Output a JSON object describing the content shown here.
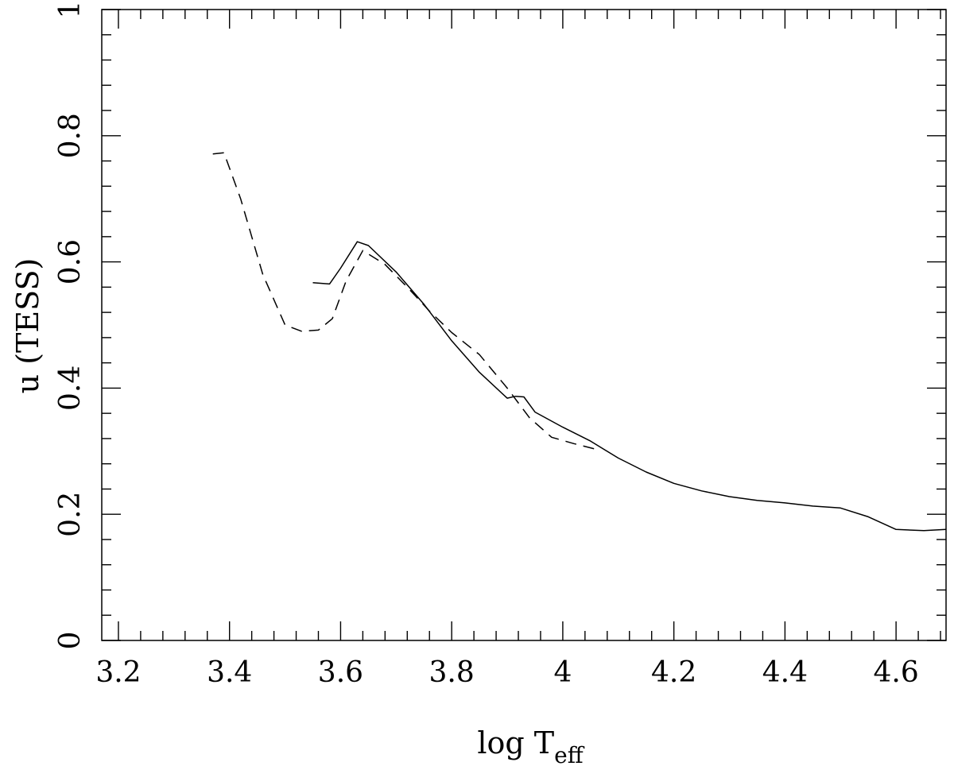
{
  "chart_data": {
    "type": "line",
    "title": "",
    "xlabel_main": "log T",
    "xlabel_sub": "eff",
    "ylabel": "u (TESS)",
    "xlim": [
      3.17,
      4.69
    ],
    "ylim": [
      0,
      1
    ],
    "x_ticks": [
      3.2,
      3.4,
      3.6,
      3.8,
      4.0,
      4.2,
      4.4,
      4.6
    ],
    "x_tick_labels": [
      "3.2",
      "3.4",
      "3.6",
      "3.8",
      "4",
      "4.2",
      "4.4",
      "4.6"
    ],
    "y_ticks": [
      0,
      0.2,
      0.4,
      0.6,
      0.8,
      1
    ],
    "y_tick_labels": [
      "0",
      "0.2",
      "0.4",
      "0.6",
      "0.8",
      "1"
    ],
    "x_minor_step": 0.04,
    "y_minor_step": 0.04,
    "grid": false,
    "series": [
      {
        "style": "solid",
        "points": [
          [
            3.55,
            0.567
          ],
          [
            3.58,
            0.565
          ],
          [
            3.6,
            0.59
          ],
          [
            3.63,
            0.632
          ],
          [
            3.65,
            0.626
          ],
          [
            3.7,
            0.584
          ],
          [
            3.75,
            0.533
          ],
          [
            3.8,
            0.475
          ],
          [
            3.85,
            0.425
          ],
          [
            3.9,
            0.384
          ],
          [
            3.915,
            0.387
          ],
          [
            3.93,
            0.386
          ],
          [
            3.95,
            0.362
          ],
          [
            4.0,
            0.338
          ],
          [
            4.05,
            0.316
          ],
          [
            4.1,
            0.289
          ],
          [
            4.15,
            0.267
          ],
          [
            4.2,
            0.249
          ],
          [
            4.25,
            0.237
          ],
          [
            4.3,
            0.228
          ],
          [
            4.35,
            0.222
          ],
          [
            4.4,
            0.218
          ],
          [
            4.45,
            0.213
          ],
          [
            4.5,
            0.21
          ],
          [
            4.55,
            0.196
          ],
          [
            4.6,
            0.176
          ],
          [
            4.65,
            0.174
          ],
          [
            4.69,
            0.176
          ]
        ]
      },
      {
        "style": "dashed",
        "points": [
          [
            3.37,
            0.771
          ],
          [
            3.39,
            0.773
          ],
          [
            3.42,
            0.7
          ],
          [
            3.46,
            0.58
          ],
          [
            3.5,
            0.5
          ],
          [
            3.53,
            0.49
          ],
          [
            3.56,
            0.492
          ],
          [
            3.585,
            0.51
          ],
          [
            3.61,
            0.57
          ],
          [
            3.64,
            0.618
          ],
          [
            3.68,
            0.596
          ],
          [
            3.72,
            0.56
          ],
          [
            3.76,
            0.522
          ],
          [
            3.8,
            0.488
          ],
          [
            3.85,
            0.453
          ],
          [
            3.9,
            0.4
          ],
          [
            3.94,
            0.353
          ],
          [
            3.98,
            0.322
          ],
          [
            4.02,
            0.312
          ],
          [
            4.06,
            0.303
          ]
        ]
      }
    ]
  }
}
